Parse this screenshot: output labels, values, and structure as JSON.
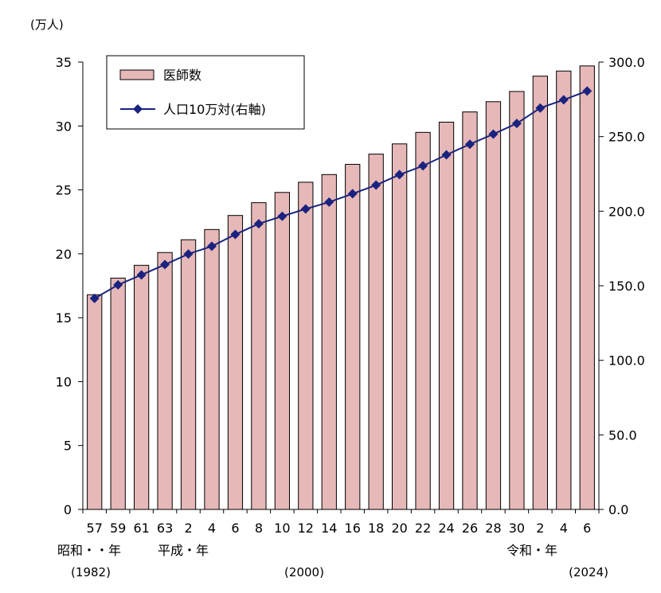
{
  "chart_data": {
    "type": "bar",
    "title": "",
    "y_unit_label": "(万人)",
    "categories": [
      "57",
      "59",
      "61",
      "63",
      "2",
      "4",
      "6",
      "8",
      "10",
      "12",
      "14",
      "16",
      "18",
      "20",
      "22",
      "24",
      "26",
      "28",
      "30",
      "2",
      "4",
      "6"
    ],
    "era_labels": [
      {
        "category_index": 0,
        "text": "昭和・・年"
      },
      {
        "category_index": 4,
        "text": "平成・年"
      },
      {
        "category_index": 19,
        "text": "令和・年"
      }
    ],
    "year_labels": [
      {
        "category_index": 0,
        "text": "(1982)"
      },
      {
        "category_index": 9,
        "text": "(2000)"
      },
      {
        "category_index": 21,
        "text": "(2024)"
      }
    ],
    "series": [
      {
        "name": "医師数",
        "type": "bar",
        "axis": "left",
        "color": "#e6b8b8",
        "values": [
          16.8,
          18.1,
          19.1,
          20.1,
          21.1,
          21.9,
          23.0,
          24.0,
          24.8,
          25.6,
          26.2,
          27.0,
          27.8,
          28.6,
          29.5,
          30.3,
          31.1,
          31.9,
          32.7,
          33.9,
          34.3,
          34.7
        ]
      },
      {
        "name": "人口10万対(右軸)",
        "type": "line",
        "axis": "right",
        "color": "#1a237e",
        "values": [
          141.5,
          150.6,
          157.3,
          164.2,
          171.3,
          176.5,
          184.4,
          191.6,
          196.6,
          201.5,
          206.1,
          211.7,
          217.5,
          224.5,
          230.4,
          237.8,
          244.9,
          251.7,
          258.8,
          269.2,
          274.7,
          280.6
        ]
      }
    ],
    "y_left": {
      "min": 0,
      "max": 35,
      "ticks": [
        0,
        5,
        10,
        15,
        20,
        25,
        30,
        35
      ]
    },
    "y_right": {
      "min": 0,
      "max": 300,
      "ticks": [
        "0.0",
        "50.0",
        "100.0",
        "150.0",
        "200.0",
        "250.0",
        "300.0"
      ]
    },
    "legend_placement": "top-left",
    "grid": false
  }
}
